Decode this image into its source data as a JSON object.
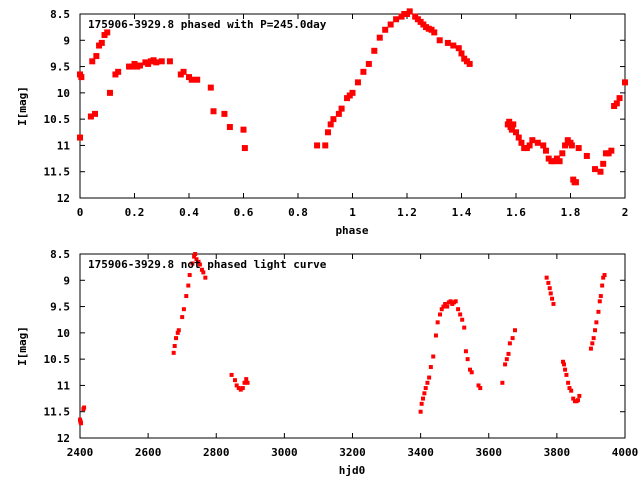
{
  "chart_data": [
    {
      "type": "scatter",
      "title": "175906-3929.8 phased with P=245.0day",
      "xlabel": "phase",
      "ylabel": "I[mag]",
      "xlim": [
        0,
        2
      ],
      "ylim": [
        8.5,
        12
      ],
      "y_inverted": true,
      "xticks": [
        0,
        0.2,
        0.4,
        0.6,
        0.8,
        1,
        1.2,
        1.4,
        1.6,
        1.8,
        2
      ],
      "xtick_labels": [
        "0",
        "0.2",
        "0.4",
        "0.6",
        "0.8",
        "1",
        "1.2",
        "1.4",
        "1.6",
        "1.8",
        "2"
      ],
      "yticks": [
        8.5,
        9,
        9.5,
        10,
        10.5,
        11,
        11.5,
        12
      ],
      "ytick_labels": [
        "8.5",
        "9",
        "9.5",
        "10",
        "10.5",
        "11",
        "11.5",
        "12"
      ],
      "marker_color": "#ff0000",
      "grid": false,
      "series": [
        {
          "x": [
            0.0,
            0.0,
            0.005,
            0.04,
            0.045,
            0.055,
            0.06,
            0.07,
            0.08,
            0.09,
            0.1,
            0.11,
            0.13,
            0.14,
            0.18,
            0.19,
            0.2,
            0.21,
            0.22,
            0.24,
            0.25,
            0.26,
            0.27,
            0.28,
            0.3,
            0.33,
            0.37,
            0.38,
            0.4,
            0.41,
            0.43,
            0.48,
            0.49,
            0.53,
            0.55,
            0.6,
            0.605,
            0.87,
            0.9,
            0.91,
            0.92,
            0.93,
            0.95,
            0.96,
            0.98,
            0.99,
            1.0,
            1.02,
            1.04,
            1.06,
            1.08,
            1.1,
            1.12,
            1.14,
            1.16,
            1.18,
            1.19,
            1.2,
            1.21,
            1.23,
            1.24,
            1.25,
            1.26,
            1.27,
            1.28,
            1.29,
            1.3,
            1.32,
            1.35,
            1.37,
            1.39,
            1.4,
            1.41,
            1.42,
            1.43,
            1.57,
            1.575,
            1.58,
            1.585,
            1.59,
            1.6,
            1.61,
            1.62,
            1.63,
            1.64,
            1.65,
            1.66,
            1.68,
            1.7,
            1.71,
            1.72,
            1.73,
            1.74,
            1.75,
            1.76,
            1.77,
            1.78,
            1.79,
            1.8,
            1.805,
            1.81,
            1.815,
            1.82,
            1.83,
            1.86,
            1.89,
            1.91,
            1.92,
            1.93,
            1.94,
            1.95,
            1.96,
            1.97,
            1.98,
            2.0
          ],
          "y": [
            10.85,
            9.65,
            9.7,
            10.45,
            9.4,
            10.4,
            9.3,
            9.1,
            9.05,
            8.9,
            8.85,
            10.0,
            9.65,
            9.6,
            9.5,
            9.5,
            9.45,
            9.5,
            9.48,
            9.42,
            9.45,
            9.4,
            9.38,
            9.42,
            9.4,
            9.4,
            9.65,
            9.6,
            9.7,
            9.75,
            9.75,
            9.9,
            10.35,
            10.4,
            10.65,
            10.7,
            11.05,
            11.0,
            11.0,
            10.75,
            10.6,
            10.5,
            10.4,
            10.3,
            10.1,
            10.05,
            10.0,
            9.8,
            9.6,
            9.45,
            9.2,
            8.95,
            8.8,
            8.7,
            8.6,
            8.55,
            8.5,
            8.5,
            8.45,
            8.55,
            8.6,
            8.65,
            8.7,
            8.75,
            8.78,
            8.8,
            8.85,
            9.0,
            9.05,
            9.1,
            9.15,
            9.25,
            9.35,
            9.4,
            9.45,
            10.6,
            10.55,
            10.65,
            10.7,
            10.6,
            10.75,
            10.85,
            10.95,
            11.05,
            11.05,
            11.0,
            10.9,
            10.95,
            11.0,
            11.1,
            11.25,
            11.3,
            11.3,
            11.25,
            11.3,
            11.15,
            11.0,
            10.9,
            10.95,
            11.0,
            11.65,
            11.7,
            11.7,
            11.05,
            11.2,
            11.45,
            11.5,
            11.35,
            11.15,
            11.15,
            11.1,
            10.25,
            10.2,
            10.1,
            9.8
          ]
        }
      ]
    },
    {
      "type": "scatter",
      "title": "175906-3929.8 not phased light curve",
      "xlabel": "hjd0",
      "ylabel": "I[mag]",
      "xlim": [
        2400,
        4000
      ],
      "ylim": [
        8.5,
        12
      ],
      "y_inverted": true,
      "xticks": [
        2400,
        2600,
        2800,
        3000,
        3200,
        3400,
        3600,
        3800,
        4000
      ],
      "xtick_labels": [
        "2400",
        "2600",
        "2800",
        "3000",
        "3200",
        "3400",
        "3600",
        "3800",
        "4000"
      ],
      "yticks": [
        8.5,
        9,
        9.5,
        10,
        10.5,
        11,
        11.5,
        12
      ],
      "ytick_labels": [
        "8.5",
        "9",
        "9.5",
        "10",
        "10.5",
        "11",
        "11.5",
        "12"
      ],
      "marker_color": "#ff0000",
      "grid": false,
      "series": [
        {
          "x": [
            2400,
            2401,
            2402,
            2403,
            2410,
            2412,
            2675,
            2678,
            2682,
            2687,
            2690,
            2700,
            2705,
            2712,
            2718,
            2722,
            2730,
            2735,
            2738,
            2742,
            2748,
            2752,
            2758,
            2762,
            2768,
            2845,
            2855,
            2860,
            2866,
            2872,
            2878,
            2883,
            2888,
            2892,
            3400,
            3403,
            3407,
            3411,
            3415,
            3420,
            3425,
            3430,
            3437,
            3445,
            3450,
            3457,
            3462,
            3467,
            3472,
            3478,
            3483,
            3488,
            3493,
            3498,
            3503,
            3510,
            3516,
            3522,
            3528,
            3533,
            3538,
            3545,
            3550,
            3570,
            3575,
            3640,
            3648,
            3653,
            3658,
            3662,
            3670,
            3677,
            3770,
            3775,
            3779,
            3782,
            3786,
            3790,
            3818,
            3821,
            3824,
            3828,
            3833,
            3837,
            3842,
            3848,
            3853,
            3858,
            3862,
            3866,
            3900,
            3904,
            3908,
            3912,
            3916,
            3922,
            3926,
            3929,
            3933,
            3936,
            3940
          ],
          "y": [
            11.65,
            11.68,
            11.7,
            11.72,
            11.45,
            11.42,
            10.38,
            10.25,
            10.1,
            10.0,
            9.95,
            9.7,
            9.55,
            9.3,
            9.1,
            8.9,
            8.68,
            8.55,
            8.5,
            8.6,
            8.65,
            8.7,
            8.8,
            8.85,
            8.95,
            10.8,
            10.9,
            11.0,
            11.05,
            11.08,
            11.05,
            10.95,
            10.88,
            10.95,
            11.5,
            11.35,
            11.25,
            11.15,
            11.05,
            10.95,
            10.85,
            10.65,
            10.45,
            10.05,
            9.8,
            9.65,
            9.55,
            9.5,
            9.45,
            9.5,
            9.42,
            9.4,
            9.45,
            9.42,
            9.4,
            9.55,
            9.65,
            9.75,
            9.9,
            10.35,
            10.5,
            10.7,
            10.75,
            11.0,
            11.05,
            10.95,
            10.6,
            10.5,
            10.4,
            10.2,
            10.1,
            9.95,
            8.95,
            9.05,
            9.15,
            9.25,
            9.35,
            9.45,
            10.55,
            10.6,
            10.7,
            10.8,
            10.95,
            11.05,
            11.1,
            11.25,
            11.3,
            11.3,
            11.28,
            11.2,
            10.3,
            10.2,
            10.1,
            9.95,
            9.8,
            9.6,
            9.4,
            9.3,
            9.1,
            8.95,
            8.9
          ]
        }
      ]
    }
  ]
}
